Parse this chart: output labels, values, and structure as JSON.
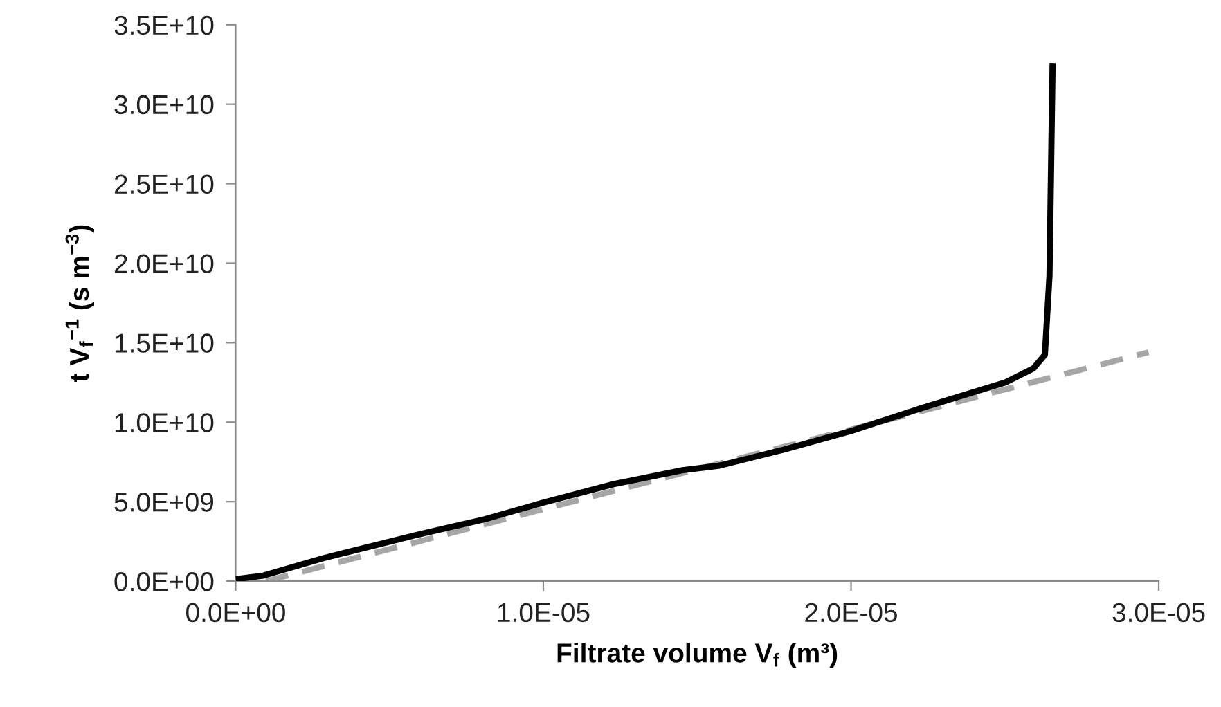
{
  "chart_data": {
    "type": "line",
    "xlabel": "Filtrate volume V$_{f}$ (m³)",
    "ylabel": "t V$_{f}$$^{−1}$ (s m$^{−3}$)",
    "series": [
      {
        "color": "#000000",
        "line_style": "solid",
        "x": [
          1e-07,
          9e-07,
          2.86e-06,
          5.86e-06,
          8.1e-06,
          1e-05,
          1.228e-05,
          1.453e-05,
          1.573e-05,
          1.783e-05,
          2e-05,
          2.232e-05,
          2.502e-05,
          2.592e-05,
          2.63e-05,
          2.645e-05,
          2.655e-05
        ],
        "values": [
          150000000.0,
          350000000.0,
          1450000000.0,
          2900000000.0,
          3900000000.0,
          4940000000.0,
          6100000000.0,
          6980000000.0,
          7270000000.0,
          8280000000.0,
          9450000000.0,
          10900000000.0,
          12500000000.0,
          13370000000.0,
          14240000000.0,
          19200000000.0,
          32400000000.0
        ]
      },
      {
        "color": "#a6a6a6",
        "line_style": "dashed",
        "x": [
          9.8e-07,
          2.967e-05
        ],
        "values": [
          0,
          14400000000.0
        ]
      }
    ],
    "xlim": [
      0,
      3e-05
    ],
    "ylim": [
      0,
      35000000000.0
    ],
    "xticks": [
      {
        "value": 0,
        "label": "0.0E+00"
      },
      {
        "value": 1e-05,
        "label": "1.0E-05"
      },
      {
        "value": 2e-05,
        "label": "2.0E-05"
      },
      {
        "value": 3e-05,
        "label": "3.0E-05"
      }
    ],
    "yticks": [
      {
        "value": 0,
        "label": "0.0E+00"
      },
      {
        "value": 5000000000.0,
        "label": "5.0E+09"
      },
      {
        "value": 10000000000.0,
        "label": "1.0E+10"
      },
      {
        "value": 15000000000.0,
        "label": "1.5E+10"
      },
      {
        "value": 20000000000.0,
        "label": "2.0E+10"
      },
      {
        "value": 25000000000.0,
        "label": "2.5E+10"
      },
      {
        "value": 30000000000.0,
        "label": "3.0E+10"
      },
      {
        "value": 35000000000.0,
        "label": "3.5E+10"
      }
    ],
    "grid": false,
    "legend": false
  }
}
